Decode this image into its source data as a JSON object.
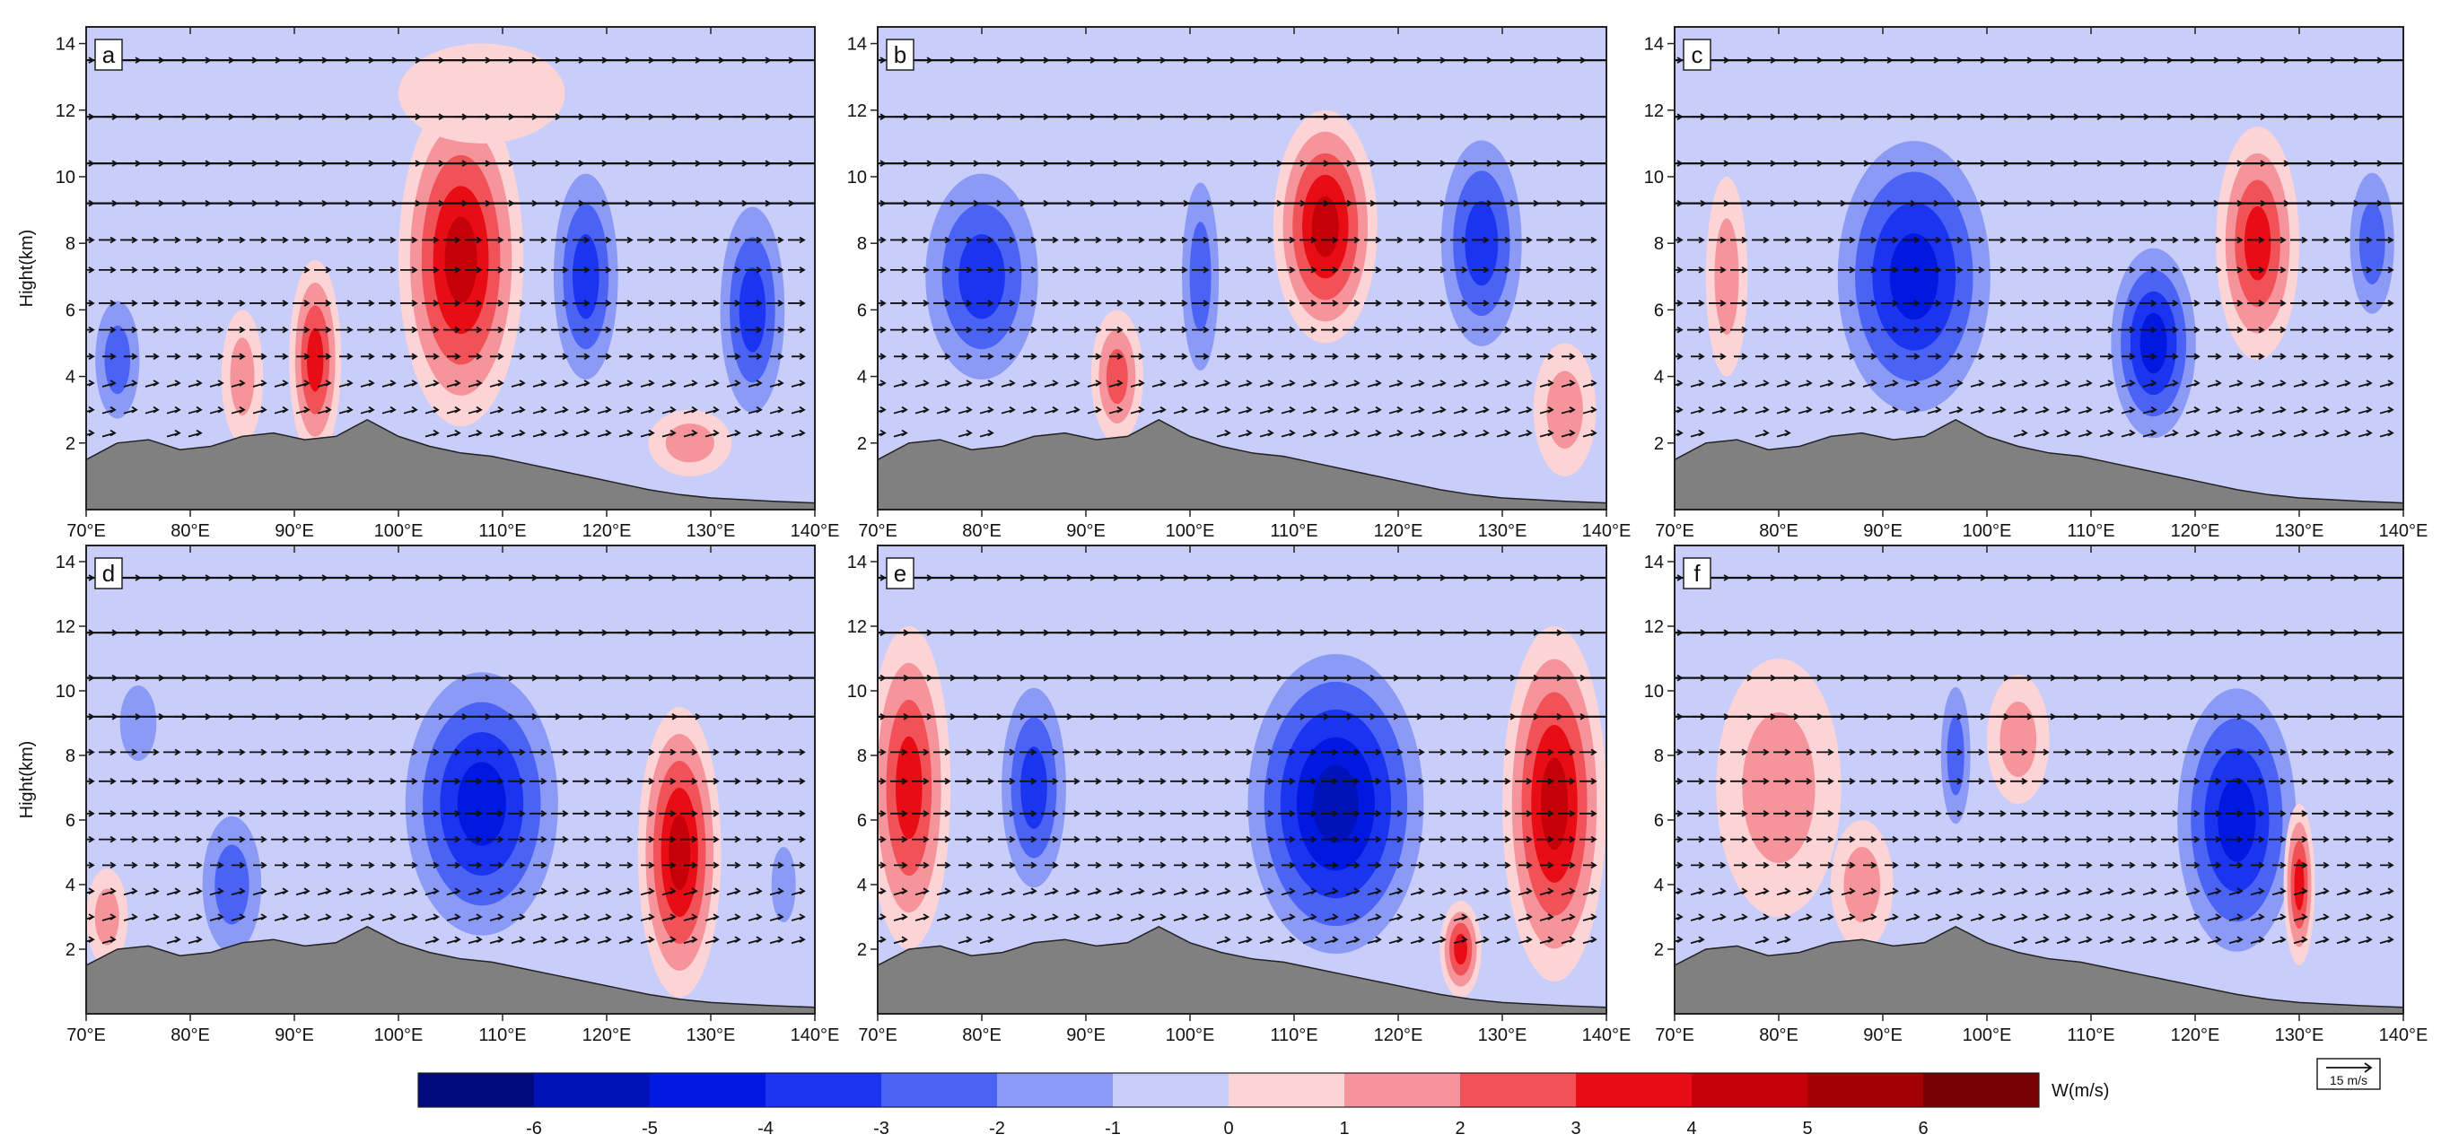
{
  "chart_data": {
    "type": "heatmap",
    "figure_description": "Longitude-height cross sections of vertical velocity (shaded) with wind vectors",
    "x_axis": {
      "min": 70,
      "max": 140,
      "step": 10,
      "unit": "E",
      "tick_labels": [
        "70°E",
        "80°E",
        "90°E",
        "100°E",
        "110°E",
        "120°E",
        "130°E",
        "140°E"
      ]
    },
    "y_axis": {
      "label": "Hight(km)",
      "min": 0,
      "max": 14.5,
      "ticks": [
        2,
        4,
        6,
        8,
        10,
        12,
        14
      ],
      "tick_labels": [
        "2",
        "4",
        "6",
        "8",
        "10",
        "12",
        "14"
      ]
    },
    "panels": [
      {
        "label": "a",
        "cells": [
          {
            "lon": 73,
            "h": 4.5,
            "w": -3,
            "rx": 3,
            "ry": 2.5
          },
          {
            "lon": 85,
            "h": 4,
            "w": 2,
            "rx": 2,
            "ry": 2
          },
          {
            "lon": 92,
            "h": 4.5,
            "w": 3.5,
            "rx": 2.5,
            "ry": 3
          },
          {
            "lon": 106,
            "h": 7.5,
            "w": 5,
            "rx": 6,
            "ry": 5
          },
          {
            "lon": 118,
            "h": 7,
            "w": -3.5,
            "rx": 4,
            "ry": 4
          },
          {
            "lon": 134,
            "h": 6,
            "w": -3.5,
            "rx": 4,
            "ry": 4
          },
          {
            "lon": 108,
            "h": 12.5,
            "w": 1,
            "rx": 8,
            "ry": 1.5
          },
          {
            "lon": 128,
            "h": 2,
            "w": 2,
            "rx": 4,
            "ry": 1
          }
        ]
      },
      {
        "label": "b",
        "cells": [
          {
            "lon": 80,
            "h": 7,
            "w": -3.5,
            "rx": 7,
            "ry": 4
          },
          {
            "lon": 93,
            "h": 4,
            "w": 2.5,
            "rx": 2.5,
            "ry": 2
          },
          {
            "lon": 101,
            "h": 7,
            "w": -2.5,
            "rx": 2.5,
            "ry": 4
          },
          {
            "lon": 113,
            "h": 8.5,
            "w": 4.5,
            "rx": 5,
            "ry": 3.5
          },
          {
            "lon": 128,
            "h": 8,
            "w": -3.5,
            "rx": 5,
            "ry": 4
          },
          {
            "lon": 136,
            "h": 3,
            "w": 2,
            "rx": 3,
            "ry": 2
          }
        ]
      },
      {
        "label": "c",
        "cells": [
          {
            "lon": 75,
            "h": 7,
            "w": 2,
            "rx": 2,
            "ry": 3
          },
          {
            "lon": 93,
            "h": 7,
            "w": -4.5,
            "rx": 9,
            "ry": 5
          },
          {
            "lon": 116,
            "h": 5,
            "w": -4.5,
            "rx": 5,
            "ry": 3.5
          },
          {
            "lon": 126,
            "h": 8,
            "w": 3.5,
            "rx": 4,
            "ry": 3.5
          },
          {
            "lon": 137,
            "h": 8,
            "w": -2.5,
            "rx": 3,
            "ry": 3
          }
        ]
      },
      {
        "label": "d",
        "cells": [
          {
            "lon": 75,
            "h": 9,
            "w": -2,
            "rx": 3,
            "ry": 2
          },
          {
            "lon": 84,
            "h": 4,
            "w": -3,
            "rx": 4,
            "ry": 3
          },
          {
            "lon": 108,
            "h": 6.5,
            "w": -5,
            "rx": 9,
            "ry": 5
          },
          {
            "lon": 127,
            "h": 5,
            "w": 4.5,
            "rx": 4,
            "ry": 4.5
          },
          {
            "lon": 72,
            "h": 3,
            "w": 2,
            "rx": 2,
            "ry": 1.5
          },
          {
            "lon": 137,
            "h": 4,
            "w": -2,
            "rx": 2,
            "ry": 2
          }
        ]
      },
      {
        "label": "e",
        "cells": [
          {
            "lon": 73,
            "h": 7,
            "w": 4,
            "rx": 4,
            "ry": 5
          },
          {
            "lon": 85,
            "h": 7,
            "w": -3.5,
            "rx": 4,
            "ry": 4
          },
          {
            "lon": 114,
            "h": 6.5,
            "w": -5.5,
            "rx": 10,
            "ry": 5.5
          },
          {
            "lon": 135,
            "h": 6.5,
            "w": 4.5,
            "rx": 5,
            "ry": 5.5
          },
          {
            "lon": 126,
            "h": 2,
            "w": 4,
            "rx": 2,
            "ry": 1.5
          }
        ]
      },
      {
        "label": "f",
        "cells": [
          {
            "lon": 80,
            "h": 7,
            "w": 2,
            "rx": 6,
            "ry": 4
          },
          {
            "lon": 97,
            "h": 8,
            "w": -3,
            "rx": 2,
            "ry": 3
          },
          {
            "lon": 103,
            "h": 8.5,
            "w": 1.5,
            "rx": 3,
            "ry": 2
          },
          {
            "lon": 124,
            "h": 6,
            "w": -4.5,
            "rx": 7,
            "ry": 5
          },
          {
            "lon": 130,
            "h": 4,
            "w": 4,
            "rx": 1.5,
            "ry": 2.5
          },
          {
            "lon": 88,
            "h": 4,
            "w": 1.5,
            "rx": 3,
            "ry": 2
          }
        ]
      }
    ],
    "terrain_km": [
      [
        70,
        1.5
      ],
      [
        73,
        2.0
      ],
      [
        76,
        2.1
      ],
      [
        79,
        1.8
      ],
      [
        82,
        1.9
      ],
      [
        85,
        2.2
      ],
      [
        88,
        2.3
      ],
      [
        91,
        2.1
      ],
      [
        94,
        2.2
      ],
      [
        97,
        2.7
      ],
      [
        100,
        2.2
      ],
      [
        103,
        1.9
      ],
      [
        106,
        1.7
      ],
      [
        109,
        1.6
      ],
      [
        112,
        1.4
      ],
      [
        115,
        1.2
      ],
      [
        118,
        1.0
      ],
      [
        121,
        0.8
      ],
      [
        124,
        0.6
      ],
      [
        127,
        0.45
      ],
      [
        130,
        0.35
      ],
      [
        133,
        0.3
      ],
      [
        136,
        0.25
      ],
      [
        140,
        0.2
      ]
    ],
    "vector_levels_km": [
      13.5,
      11.8,
      10.4,
      9.2,
      8.1,
      7.2,
      6.2,
      5.4,
      4.6,
      3.8,
      3.0,
      2.3
    ],
    "colorbar": {
      "label": "W(m/s)",
      "boundaries": [
        -7,
        -6,
        -5,
        -4,
        -3,
        -2,
        -1,
        0,
        1,
        2,
        3,
        4,
        5,
        6,
        7
      ],
      "tick_labels": [
        "-6",
        "-5",
        "-4",
        "-3",
        "-2",
        "-1",
        "0",
        "1",
        "2",
        "3",
        "4",
        "5",
        "6"
      ],
      "colors": [
        "#000a7d",
        "#0012b8",
        "#0018e0",
        "#1a34f0",
        "#4a63f5",
        "#8a9af5",
        "#c9cdfa",
        "#fcd4d6",
        "#f5959b",
        "#f05258",
        "#e80c14",
        "#c60008",
        "#a20005",
        "#760003"
      ]
    },
    "reference_vector": {
      "label": "15 m/s"
    },
    "colors": {
      "terrain": "#808080",
      "vector": "#111111",
      "axis": "#222222"
    }
  }
}
